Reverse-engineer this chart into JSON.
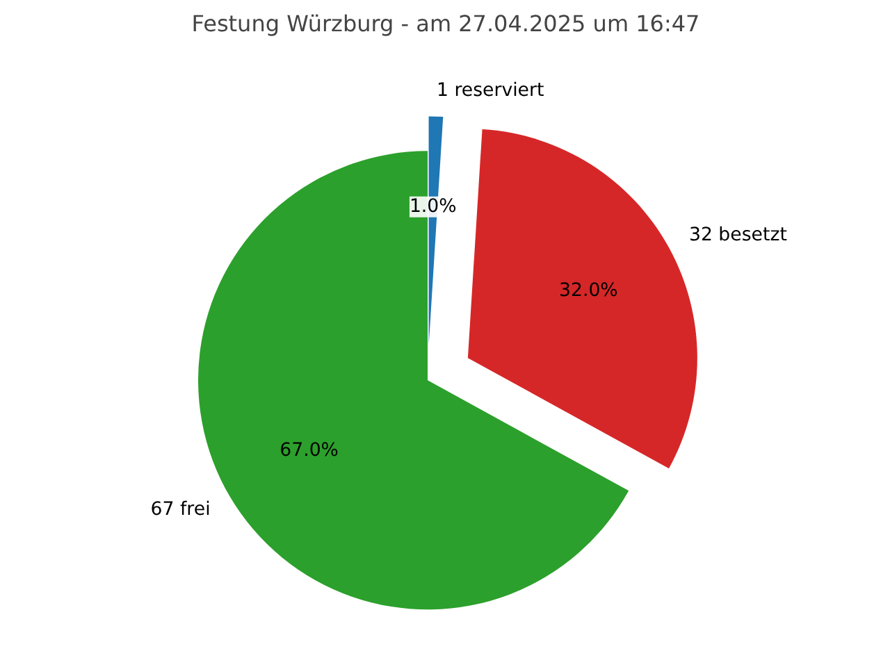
{
  "chart_data": {
    "type": "pie",
    "title": "Festung Würzburg - am 27.04.2025 um 16:47",
    "categories": [
      "1 reserviert",
      "32 besetzt",
      "67 frei"
    ],
    "values": [
      1,
      32,
      67
    ],
    "colors": [
      "#1f77b4",
      "#d62728",
      "#2ca02c"
    ],
    "value_labels": [
      "1.0%",
      "32.0%",
      "67.0%"
    ]
  }
}
